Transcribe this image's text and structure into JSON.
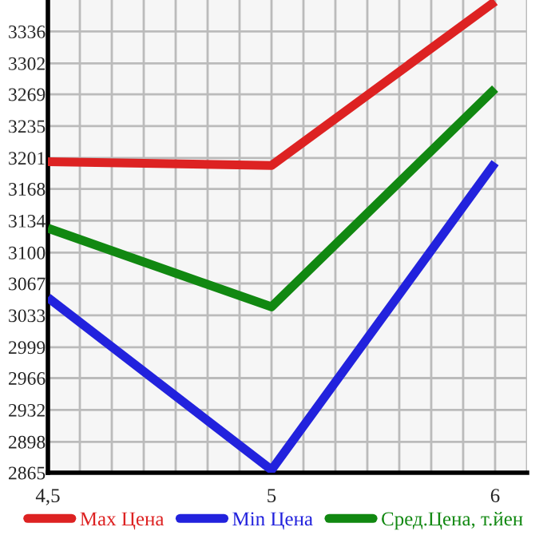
{
  "chart_data": {
    "type": "line",
    "categories": [
      "4,5",
      "5",
      "6"
    ],
    "series": [
      {
        "name": "Max Цена",
        "color": "#dd2222",
        "values": [
          3197,
          3193,
          3368
        ]
      },
      {
        "name": "Min Цена",
        "color": "#2222dd",
        "values": [
          3052,
          2868,
          3196
        ]
      },
      {
        "name": "Сред.Цена, т.йен",
        "color": "#118811",
        "values": [
          3126,
          3042,
          3275
        ]
      }
    ],
    "ylim": [
      2865,
      3369.6
    ],
    "yticks": [
      2865,
      2898,
      2932,
      2966,
      2999,
      3033,
      3067,
      3100,
      3134,
      3168,
      3201,
      3235,
      3269,
      3302,
      3336
    ],
    "grid": true,
    "legend": "bottom",
    "marker": "none",
    "line_style": "solid"
  }
}
